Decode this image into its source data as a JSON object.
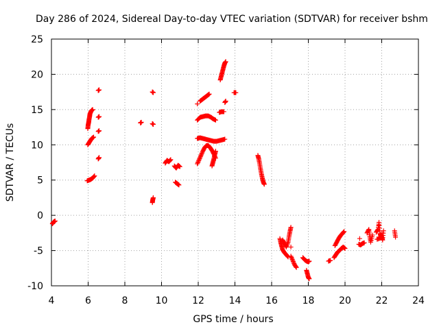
{
  "chart_data": {
    "type": "scatter",
    "title": "Day 286 of 2024, Sidereal Day-to-day VTEC variation (SDTVAR) for receiver bshm",
    "xlabel": "GPS time / hours",
    "ylabel": "SDTVAR / TECUs",
    "xlim": [
      4,
      24
    ],
    "ylim": [
      -10,
      25
    ],
    "xticks": [
      "4",
      "6",
      "8",
      "10",
      "12",
      "14",
      "16",
      "18",
      "20",
      "22",
      "24"
    ],
    "yticks": [
      "-10",
      "-5",
      "0",
      "5",
      "10",
      "15",
      "20",
      "25"
    ],
    "grid": true,
    "marker": "+",
    "color": "#ff0000",
    "series": [
      {
        "name": "SDTVAR",
        "segments": [
          [
            [
              4.05,
              -1.2
            ],
            [
              4.1,
              -1.0
            ],
            [
              4.15,
              -0.9
            ],
            [
              4.2,
              -0.8
            ]
          ],
          [
            [
              5.95,
              4.9
            ],
            [
              6.05,
              5.0
            ],
            [
              6.15,
              5.1
            ],
            [
              6.25,
              5.3
            ],
            [
              6.35,
              5.6
            ]
          ],
          [
            [
              5.98,
              10.0
            ],
            [
              6.05,
              10.3
            ],
            [
              6.12,
              10.6
            ],
            [
              6.2,
              10.9
            ],
            [
              6.3,
              11.1
            ]
          ],
          [
            [
              5.98,
              12.3
            ],
            [
              6.0,
              12.8
            ],
            [
              6.03,
              13.2
            ],
            [
              6.05,
              13.6
            ],
            [
              6.08,
              14.0
            ],
            [
              6.1,
              14.4
            ],
            [
              6.15,
              14.7
            ],
            [
              6.2,
              14.9
            ],
            [
              6.25,
              15.0
            ]
          ],
          [
            [
              6.55,
              17.7
            ],
            [
              6.6,
              17.8
            ]
          ],
          [
            [
              6.55,
              13.9
            ],
            [
              6.6,
              14.0
            ]
          ],
          [
            [
              6.55,
              11.9
            ],
            [
              6.6,
              12.0
            ]
          ],
          [
            [
              6.55,
              8.0
            ],
            [
              6.6,
              8.2
            ]
          ],
          [
            [
              8.85,
              13.1
            ],
            [
              8.9,
              13.2
            ]
          ],
          [
            [
              9.5,
              17.5
            ],
            [
              9.55,
              17.4
            ]
          ],
          [
            [
              9.5,
              13.0
            ],
            [
              9.55,
              12.9
            ]
          ],
          [
            [
              9.5,
              1.8
            ],
            [
              9.52,
              2.2
            ],
            [
              9.55,
              2.5
            ]
          ],
          [
            [
              10.2,
              7.4
            ],
            [
              10.3,
              7.8
            ],
            [
              10.4,
              7.6
            ],
            [
              10.5,
              7.9
            ]
          ],
          [
            [
              10.7,
              7.0
            ],
            [
              10.8,
              6.7
            ],
            [
              10.9,
              7.1
            ],
            [
              11.0,
              6.9
            ]
          ],
          [
            [
              10.75,
              4.7
            ],
            [
              10.85,
              4.5
            ],
            [
              10.95,
              4.3
            ]
          ],
          [
            [
              11.95,
              15.8
            ]
          ],
          [
            [
              12.1,
              16.2
            ],
            [
              12.2,
              16.4
            ],
            [
              12.3,
              16.6
            ],
            [
              12.4,
              16.8
            ],
            [
              12.5,
              17.0
            ],
            [
              12.6,
              17.2
            ]
          ],
          [
            [
              11.95,
              13.5
            ],
            [
              12.1,
              13.9
            ],
            [
              12.25,
              14.0
            ],
            [
              12.4,
              14.1
            ],
            [
              12.55,
              14.1
            ],
            [
              12.7,
              13.9
            ],
            [
              12.8,
              13.7
            ],
            [
              12.95,
              13.5
            ]
          ],
          [
            [
              11.95,
              10.9
            ],
            [
              12.1,
              11.0
            ],
            [
              12.25,
              10.9
            ],
            [
              12.4,
              10.8
            ],
            [
              12.55,
              10.7
            ],
            [
              12.7,
              10.6
            ],
            [
              12.85,
              10.5
            ],
            [
              13.0,
              10.5
            ],
            [
              13.15,
              10.6
            ],
            [
              13.3,
              10.7
            ],
            [
              13.45,
              10.8
            ]
          ],
          [
            [
              11.95,
              7.3
            ],
            [
              12.05,
              7.9
            ],
            [
              12.15,
              8.5
            ],
            [
              12.25,
              9.1
            ],
            [
              12.35,
              9.6
            ],
            [
              12.45,
              9.9
            ],
            [
              12.55,
              9.9
            ],
            [
              12.65,
              9.6
            ],
            [
              12.75,
              9.2
            ],
            [
              12.85,
              8.7
            ],
            [
              12.95,
              8.1
            ]
          ],
          [
            [
              12.75,
              7.0
            ],
            [
              12.8,
              7.5
            ],
            [
              12.85,
              8.0
            ],
            [
              12.9,
              8.6
            ],
            [
              12.95,
              9.1
            ]
          ],
          [
            [
              13.2,
              19.2
            ],
            [
              13.25,
              19.7
            ],
            [
              13.3,
              20.2
            ],
            [
              13.35,
              20.7
            ],
            [
              13.4,
              21.2
            ],
            [
              13.45,
              21.6
            ],
            [
              13.5,
              21.8
            ]
          ],
          [
            [
              13.15,
              14.6
            ],
            [
              13.25,
              14.7
            ],
            [
              13.4,
              14.7
            ]
          ],
          [
            [
              13.45,
              16.0
            ],
            [
              13.5,
              16.2
            ]
          ],
          [
            [
              13.95,
              17.4
            ],
            [
              14.05,
              17.4
            ]
          ],
          [
            [
              15.25,
              8.5
            ],
            [
              15.3,
              8.0
            ],
            [
              15.35,
              7.3
            ],
            [
              15.4,
              6.5
            ],
            [
              15.45,
              5.8
            ],
            [
              15.5,
              5.2
            ],
            [
              15.55,
              4.7
            ],
            [
              15.6,
              4.4
            ]
          ],
          [
            [
              16.45,
              -3.3
            ],
            [
              16.5,
              -3.9
            ],
            [
              16.55,
              -4.4
            ],
            [
              16.6,
              -4.9
            ],
            [
              16.7,
              -5.3
            ],
            [
              16.8,
              -5.6
            ],
            [
              16.9,
              -5.9
            ]
          ],
          [
            [
              16.6,
              -3.5
            ],
            [
              16.7,
              -4.0
            ],
            [
              16.8,
              -4.5
            ],
            [
              16.9,
              -3.8
            ],
            [
              16.95,
              -3.0
            ],
            [
              17.0,
              -2.3
            ],
            [
              17.05,
              -1.7
            ]
          ],
          [
            [
              17.05,
              -4.5
            ]
          ],
          [
            [
              17.05,
              -5.8
            ],
            [
              17.15,
              -6.4
            ],
            [
              17.25,
              -7.0
            ],
            [
              17.35,
              -7.4
            ]
          ],
          [
            [
              17.7,
              -6.0
            ],
            [
              17.8,
              -6.3
            ],
            [
              17.9,
              -6.5
            ],
            [
              18.0,
              -6.6
            ],
            [
              18.05,
              -6.5
            ]
          ],
          [
            [
              17.9,
              -7.8
            ],
            [
              17.95,
              -8.3
            ],
            [
              18.0,
              -8.8
            ],
            [
              18.05,
              -9.0
            ]
          ],
          [
            [
              19.1,
              -6.5
            ],
            [
              19.2,
              -6.4
            ]
          ],
          [
            [
              19.4,
              -6.0
            ],
            [
              19.5,
              -5.6
            ],
            [
              19.6,
              -5.2
            ],
            [
              19.7,
              -5.0
            ],
            [
              19.8,
              -4.7
            ],
            [
              19.9,
              -4.5
            ],
            [
              20.0,
              -4.7
            ]
          ],
          [
            [
              19.45,
              -4.3
            ],
            [
              19.55,
              -3.8
            ],
            [
              19.65,
              -3.3
            ],
            [
              19.75,
              -2.9
            ],
            [
              19.85,
              -2.6
            ],
            [
              19.95,
              -2.3
            ]
          ],
          [
            [
              20.8,
              -3.3
            ]
          ],
          [
            [
              20.75,
              -4.1
            ],
            [
              20.85,
              -4.2
            ],
            [
              20.95,
              -4.0
            ],
            [
              21.05,
              -3.9
            ]
          ],
          [
            [
              21.2,
              -2.5
            ],
            [
              21.3,
              -2.0
            ],
            [
              21.35,
              -3.0
            ],
            [
              21.4,
              -3.8
            ],
            [
              21.5,
              -2.8
            ]
          ],
          [
            [
              21.7,
              -2.4
            ],
            [
              21.8,
              -2.0
            ],
            [
              21.85,
              -1.0
            ],
            [
              21.9,
              -2.6
            ],
            [
              22.0,
              -3.0
            ],
            [
              22.05,
              -3.5
            ],
            [
              22.1,
              -2.2
            ],
            [
              21.75,
              -3.4
            ],
            [
              21.95,
              -3.2
            ]
          ],
          [
            [
              22.7,
              -2.2
            ],
            [
              22.75,
              -3.1
            ]
          ]
        ]
      }
    ]
  }
}
